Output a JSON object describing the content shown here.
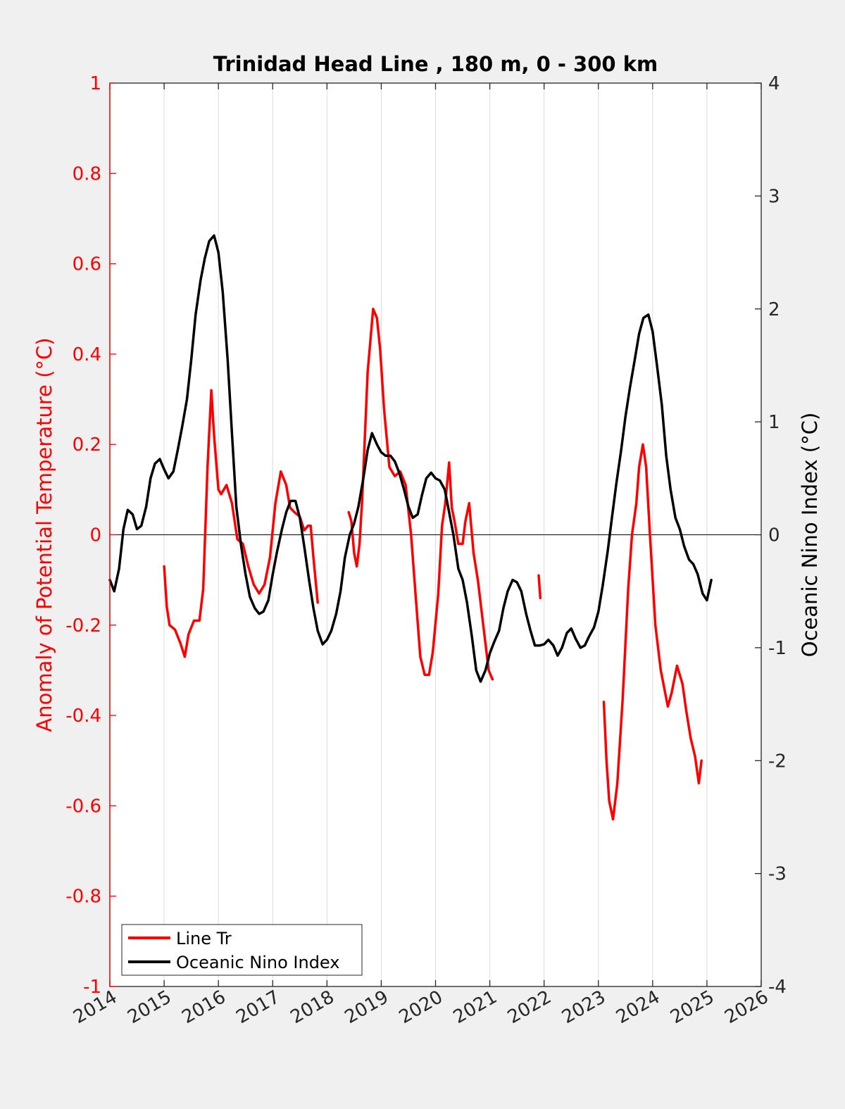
{
  "chart_data": {
    "type": "line",
    "title": "Trinidad Head Line , 180 m, 0 - 300 km",
    "xlabel": "",
    "ylabel_left": "Anomaly of Potential Temperature (°C)",
    "ylabel_right": "Oceanic Nino Index (°C)",
    "xlim": [
      2014,
      2026
    ],
    "ylim_left": [
      -1,
      1
    ],
    "ylim_right": [
      -4,
      4
    ],
    "x_ticks": [
      "2014",
      "2015",
      "2016",
      "2017",
      "2018",
      "2019",
      "2020",
      "2021",
      "2022",
      "2023",
      "2024",
      "2025",
      "2026"
    ],
    "y_ticks_left": [
      "1",
      "0.8",
      "0.6",
      "0.4",
      "0.2",
      "0",
      "-0.2",
      "-0.4",
      "-0.6",
      "-0.8",
      "-1"
    ],
    "y_ticks_right": [
      "4",
      "3",
      "2",
      "1",
      "0",
      "-1",
      "-2",
      "-3",
      "-4"
    ],
    "grid": "vertical",
    "legend_position": "bottom-left",
    "colors": {
      "line_tr": "#ff0000",
      "oni": "#000000",
      "axis_left": "#ff0000",
      "axis_right": "#000000",
      "background": "#f0f0f0"
    },
    "series": [
      {
        "name": "Line Tr",
        "axis": "left",
        "segments": [
          [
            [
              2015.0,
              -0.07
            ],
            [
              2015.05,
              -0.16
            ],
            [
              2015.1,
              -0.2
            ],
            [
              2015.2,
              -0.21
            ],
            [
              2015.3,
              -0.24
            ],
            [
              2015.38,
              -0.27
            ],
            [
              2015.45,
              -0.22
            ],
            [
              2015.55,
              -0.19
            ],
            [
              2015.65,
              -0.19
            ],
            [
              2015.72,
              -0.12
            ],
            [
              2015.8,
              0.15
            ],
            [
              2015.87,
              0.32
            ],
            [
              2015.92,
              0.22
            ],
            [
              2016.0,
              0.1
            ],
            [
              2016.05,
              0.09
            ],
            [
              2016.15,
              0.11
            ],
            [
              2016.25,
              0.07
            ],
            [
              2016.35,
              -0.01
            ],
            [
              2016.45,
              -0.02
            ],
            [
              2016.55,
              -0.07
            ],
            [
              2016.65,
              -0.11
            ],
            [
              2016.75,
              -0.13
            ],
            [
              2016.85,
              -0.11
            ],
            [
              2016.95,
              -0.05
            ],
            [
              2017.05,
              0.07
            ],
            [
              2017.15,
              0.14
            ],
            [
              2017.25,
              0.11
            ],
            [
              2017.32,
              0.06
            ],
            [
              2017.4,
              0.05
            ],
            [
              2017.5,
              0.04
            ],
            [
              2017.58,
              0.01
            ],
            [
              2017.65,
              0.02
            ],
            [
              2017.7,
              0.02
            ],
            [
              2017.75,
              -0.05
            ],
            [
              2017.83,
              -0.15
            ]
          ],
          [
            [
              2018.4,
              0.05
            ],
            [
              2018.45,
              0.03
            ],
            [
              2018.5,
              -0.04
            ],
            [
              2018.55,
              -0.07
            ],
            [
              2018.6,
              -0.02
            ],
            [
              2018.65,
              0.08
            ],
            [
              2018.75,
              0.36
            ],
            [
              2018.85,
              0.5
            ],
            [
              2018.92,
              0.48
            ],
            [
              2018.98,
              0.41
            ],
            [
              2019.05,
              0.28
            ],
            [
              2019.15,
              0.15
            ],
            [
              2019.25,
              0.13
            ],
            [
              2019.35,
              0.14
            ],
            [
              2019.45,
              0.11
            ],
            [
              2019.55,
              0.0
            ],
            [
              2019.65,
              -0.16
            ],
            [
              2019.72,
              -0.27
            ],
            [
              2019.8,
              -0.31
            ],
            [
              2019.88,
              -0.31
            ],
            [
              2019.95,
              -0.26
            ],
            [
              2020.05,
              -0.13
            ],
            [
              2020.12,
              0.02
            ],
            [
              2020.18,
              0.07
            ],
            [
              2020.25,
              0.16
            ],
            [
              2020.3,
              0.06
            ],
            [
              2020.35,
              0.03
            ],
            [
              2020.42,
              -0.02
            ],
            [
              2020.5,
              -0.02
            ],
            [
              2020.55,
              0.03
            ],
            [
              2020.62,
              0.07
            ],
            [
              2020.7,
              -0.04
            ],
            [
              2020.78,
              -0.1
            ],
            [
              2020.88,
              -0.2
            ],
            [
              2020.98,
              -0.3
            ],
            [
              2021.05,
              -0.32
            ]
          ],
          [
            [
              2021.9,
              -0.09
            ],
            [
              2021.93,
              -0.14
            ]
          ],
          [
            [
              2023.1,
              -0.37
            ],
            [
              2023.15,
              -0.5
            ],
            [
              2023.2,
              -0.59
            ],
            [
              2023.27,
              -0.63
            ],
            [
              2023.35,
              -0.55
            ],
            [
              2023.45,
              -0.36
            ],
            [
              2023.55,
              -0.12
            ],
            [
              2023.62,
              0.0
            ],
            [
              2023.7,
              0.07
            ],
            [
              2023.75,
              0.15
            ],
            [
              2023.82,
              0.2
            ],
            [
              2023.88,
              0.15
            ],
            [
              2023.95,
              0.0
            ],
            [
              2024.05,
              -0.2
            ],
            [
              2024.15,
              -0.3
            ],
            [
              2024.28,
              -0.38
            ],
            [
              2024.35,
              -0.35
            ],
            [
              2024.45,
              -0.29
            ],
            [
              2024.55,
              -0.33
            ],
            [
              2024.62,
              -0.39
            ],
            [
              2024.7,
              -0.45
            ],
            [
              2024.78,
              -0.49
            ],
            [
              2024.85,
              -0.55
            ],
            [
              2024.9,
              -0.5
            ]
          ]
        ]
      },
      {
        "name": "Oceanic Nino Index",
        "axis": "right",
        "segments": [
          [
            [
              2014.0,
              -0.4
            ],
            [
              2014.08,
              -0.5
            ],
            [
              2014.17,
              -0.3
            ],
            [
              2014.25,
              0.05
            ],
            [
              2014.33,
              0.22
            ],
            [
              2014.42,
              0.18
            ],
            [
              2014.5,
              0.05
            ],
            [
              2014.58,
              0.08
            ],
            [
              2014.67,
              0.25
            ],
            [
              2014.75,
              0.5
            ],
            [
              2014.83,
              0.63
            ],
            [
              2014.92,
              0.67
            ],
            [
              2015.0,
              0.58
            ],
            [
              2015.08,
              0.5
            ],
            [
              2015.17,
              0.56
            ],
            [
              2015.25,
              0.75
            ],
            [
              2015.33,
              0.95
            ],
            [
              2015.42,
              1.2
            ],
            [
              2015.5,
              1.55
            ],
            [
              2015.58,
              1.95
            ],
            [
              2015.67,
              2.25
            ],
            [
              2015.75,
              2.45
            ],
            [
              2015.83,
              2.6
            ],
            [
              2015.92,
              2.65
            ],
            [
              2016.0,
              2.5
            ],
            [
              2016.08,
              2.15
            ],
            [
              2016.17,
              1.55
            ],
            [
              2016.25,
              0.9
            ],
            [
              2016.33,
              0.25
            ],
            [
              2016.42,
              -0.1
            ],
            [
              2016.5,
              -0.35
            ],
            [
              2016.58,
              -0.55
            ],
            [
              2016.67,
              -0.65
            ],
            [
              2016.75,
              -0.7
            ],
            [
              2016.83,
              -0.68
            ],
            [
              2016.92,
              -0.58
            ],
            [
              2017.0,
              -0.35
            ],
            [
              2017.08,
              -0.15
            ],
            [
              2017.17,
              0.05
            ],
            [
              2017.25,
              0.2
            ],
            [
              2017.33,
              0.3
            ],
            [
              2017.42,
              0.3
            ],
            [
              2017.5,
              0.15
            ],
            [
              2017.58,
              -0.1
            ],
            [
              2017.67,
              -0.4
            ],
            [
              2017.75,
              -0.65
            ],
            [
              2017.83,
              -0.85
            ],
            [
              2017.92,
              -0.97
            ],
            [
              2018.0,
              -0.93
            ],
            [
              2018.08,
              -0.85
            ],
            [
              2018.17,
              -0.7
            ],
            [
              2018.25,
              -0.5
            ],
            [
              2018.33,
              -0.2
            ],
            [
              2018.42,
              0.0
            ],
            [
              2018.5,
              0.1
            ],
            [
              2018.58,
              0.25
            ],
            [
              2018.67,
              0.5
            ],
            [
              2018.75,
              0.75
            ],
            [
              2018.83,
              0.9
            ],
            [
              2018.92,
              0.8
            ],
            [
              2019.0,
              0.73
            ],
            [
              2019.08,
              0.7
            ],
            [
              2019.17,
              0.7
            ],
            [
              2019.25,
              0.65
            ],
            [
              2019.33,
              0.55
            ],
            [
              2019.42,
              0.4
            ],
            [
              2019.5,
              0.25
            ],
            [
              2019.58,
              0.15
            ],
            [
              2019.67,
              0.18
            ],
            [
              2019.75,
              0.35
            ],
            [
              2019.83,
              0.5
            ],
            [
              2019.92,
              0.55
            ],
            [
              2020.0,
              0.5
            ],
            [
              2020.08,
              0.48
            ],
            [
              2020.17,
              0.4
            ],
            [
              2020.25,
              0.2
            ],
            [
              2020.33,
              0.0
            ],
            [
              2020.42,
              -0.3
            ],
            [
              2020.5,
              -0.4
            ],
            [
              2020.58,
              -0.6
            ],
            [
              2020.67,
              -0.9
            ],
            [
              2020.75,
              -1.2
            ],
            [
              2020.83,
              -1.3
            ],
            [
              2020.92,
              -1.2
            ],
            [
              2021.0,
              -1.05
            ],
            [
              2021.08,
              -0.95
            ],
            [
              2021.17,
              -0.85
            ],
            [
              2021.25,
              -0.65
            ],
            [
              2021.33,
              -0.5
            ],
            [
              2021.42,
              -0.4
            ],
            [
              2021.5,
              -0.42
            ],
            [
              2021.58,
              -0.5
            ],
            [
              2021.67,
              -0.7
            ],
            [
              2021.75,
              -0.85
            ],
            [
              2021.83,
              -0.98
            ],
            [
              2021.92,
              -0.98
            ],
            [
              2022.0,
              -0.97
            ],
            [
              2022.08,
              -0.93
            ],
            [
              2022.17,
              -0.98
            ],
            [
              2022.25,
              -1.07
            ],
            [
              2022.33,
              -1.0
            ],
            [
              2022.42,
              -0.87
            ],
            [
              2022.5,
              -0.83
            ],
            [
              2022.58,
              -0.92
            ],
            [
              2022.67,
              -1.0
            ],
            [
              2022.75,
              -0.98
            ],
            [
              2022.83,
              -0.9
            ],
            [
              2022.92,
              -0.82
            ],
            [
              2023.0,
              -0.68
            ],
            [
              2023.08,
              -0.45
            ],
            [
              2023.17,
              -0.15
            ],
            [
              2023.25,
              0.15
            ],
            [
              2023.33,
              0.45
            ],
            [
              2023.42,
              0.75
            ],
            [
              2023.5,
              1.05
            ],
            [
              2023.58,
              1.3
            ],
            [
              2023.67,
              1.55
            ],
            [
              2023.75,
              1.78
            ],
            [
              2023.83,
              1.92
            ],
            [
              2023.92,
              1.95
            ],
            [
              2024.0,
              1.8
            ],
            [
              2024.08,
              1.5
            ],
            [
              2024.17,
              1.15
            ],
            [
              2024.25,
              0.7
            ],
            [
              2024.33,
              0.4
            ],
            [
              2024.42,
              0.15
            ],
            [
              2024.5,
              0.05
            ],
            [
              2024.58,
              -0.1
            ],
            [
              2024.67,
              -0.22
            ],
            [
              2024.75,
              -0.26
            ],
            [
              2024.83,
              -0.35
            ],
            [
              2024.92,
              -0.52
            ],
            [
              2025.0,
              -0.58
            ],
            [
              2025.08,
              -0.4
            ]
          ]
        ]
      }
    ]
  }
}
